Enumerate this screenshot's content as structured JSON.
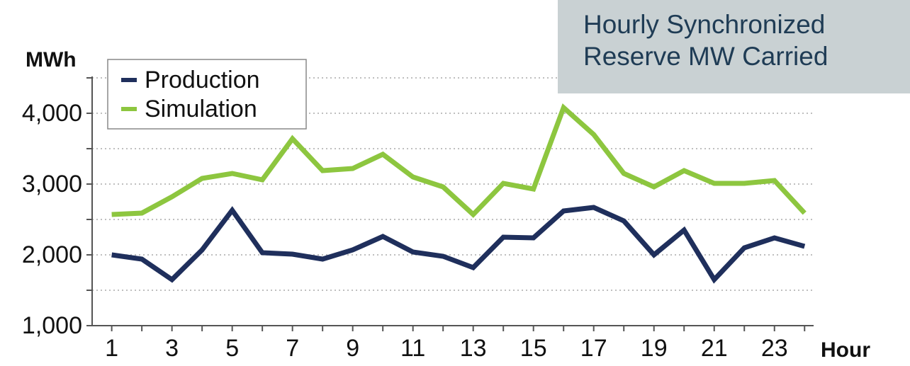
{
  "chart_data": {
    "type": "line",
    "title": "Hourly Synchronized Reserve MW Carried",
    "y_label": "MWh",
    "x_label": "Hour",
    "x": [
      1,
      2,
      3,
      4,
      5,
      6,
      7,
      8,
      9,
      10,
      11,
      12,
      13,
      14,
      15,
      16,
      17,
      18,
      19,
      20,
      21,
      22,
      23,
      24
    ],
    "series": [
      {
        "name": "Production",
        "color": "#1f2f5c",
        "values": [
          2000,
          1940,
          1650,
          2070,
          2630,
          2030,
          2010,
          1940,
          2070,
          2260,
          2040,
          1980,
          1820,
          2250,
          2240,
          2620,
          2670,
          2480,
          2000,
          2350,
          1650,
          2100,
          2240,
          2120
        ]
      },
      {
        "name": "Simulation",
        "color": "#8dc63f",
        "values": [
          2570,
          2590,
          2820,
          3080,
          3150,
          3060,
          3640,
          3190,
          3220,
          3420,
          3100,
          2960,
          2570,
          3010,
          2930,
          4080,
          3700,
          3150,
          2960,
          3190,
          3010,
          3010,
          3050,
          2590
        ]
      }
    ],
    "xlim": [
      0.35,
      24.3
    ],
    "xticks": [
      1,
      3,
      5,
      7,
      9,
      11,
      13,
      15,
      17,
      19,
      21,
      23
    ],
    "ylim": [
      1000,
      4500
    ],
    "yticks": [
      {
        "value": 1000,
        "label": "1,000"
      },
      {
        "value": 2000,
        "label": "2,000"
      },
      {
        "value": 3000,
        "label": "3,000"
      },
      {
        "value": 4000,
        "label": "4,000"
      }
    ],
    "minor_yticks": [
      1500,
      2500,
      3500,
      4500
    ],
    "grid": true,
    "legend": "upper left"
  }
}
